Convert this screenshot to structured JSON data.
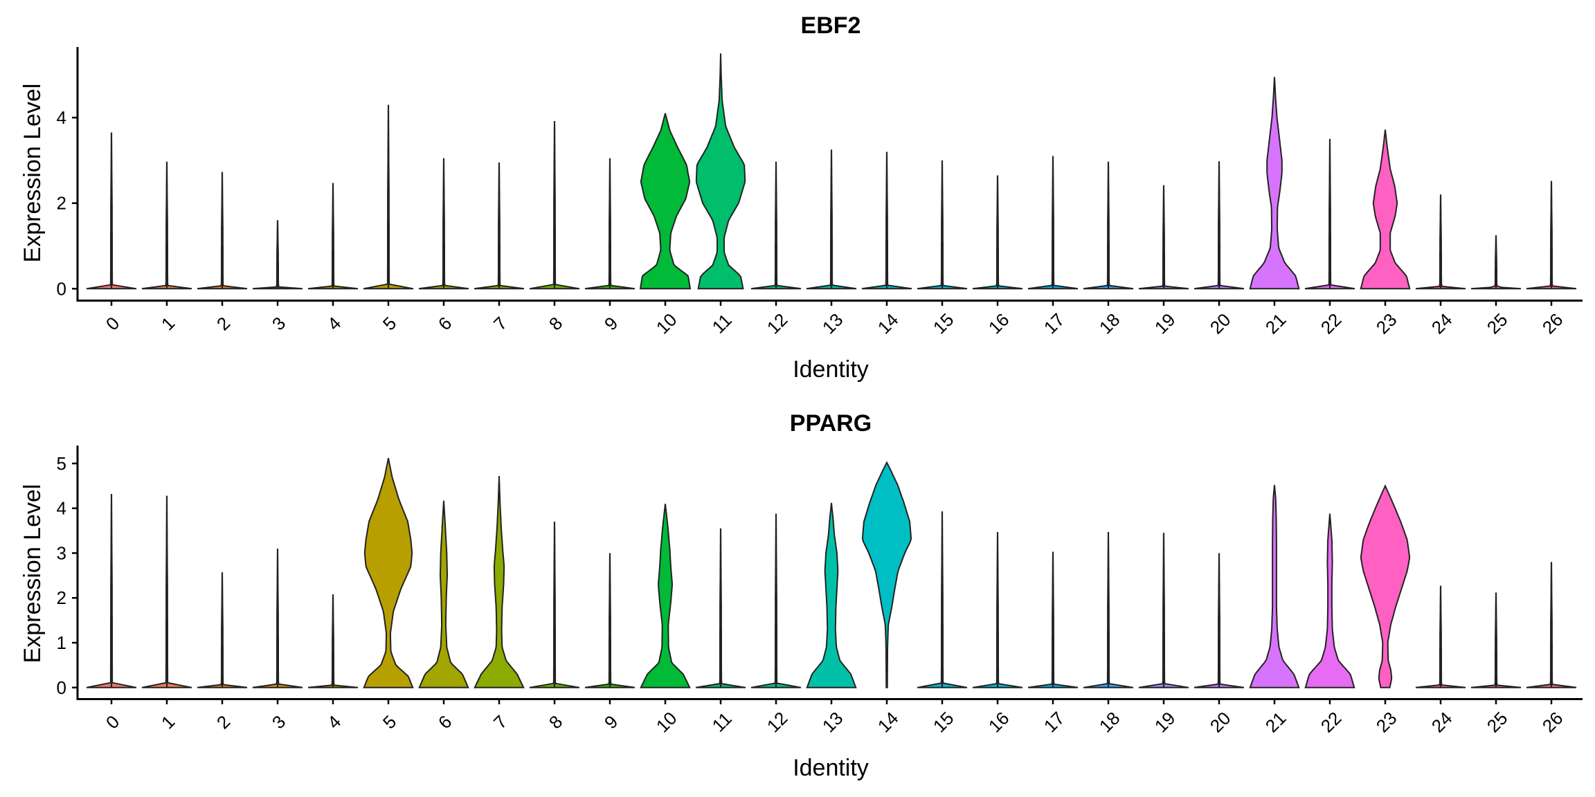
{
  "chart_data": [
    {
      "type": "violin",
      "title": "EBF2",
      "xlabel": "Identity",
      "ylabel": "Expression Level",
      "categories": [
        "0",
        "1",
        "2",
        "3",
        "4",
        "5",
        "6",
        "7",
        "8",
        "9",
        "10",
        "11",
        "12",
        "13",
        "14",
        "15",
        "16",
        "17",
        "18",
        "19",
        "20",
        "21",
        "22",
        "23",
        "24",
        "25",
        "26"
      ],
      "yticks": [
        0,
        2,
        4
      ],
      "ylim": [
        -0.27,
        5.65
      ],
      "series": [
        {
          "values": [
            {
              "max": 3.65
            },
            {
              "max": 2.97
            },
            {
              "max": 2.73
            },
            {
              "max": 1.6
            },
            {
              "max": 2.47
            },
            {
              "max": 4.3
            },
            {
              "max": 3.05
            },
            {
              "max": 2.95
            },
            {
              "max": 3.92
            },
            {
              "max": 3.05
            },
            {
              "max": 4.1,
              "profile": [
                [
                  0,
                  1.0
                ],
                [
                  0.3,
                  0.92
                ],
                [
                  0.55,
                  0.35
                ],
                [
                  0.9,
                  0.18
                ],
                [
                  1.3,
                  0.22
                ],
                [
                  1.7,
                  0.45
                ],
                [
                  2.1,
                  0.82
                ],
                [
                  2.5,
                  0.98
                ],
                [
                  2.9,
                  0.85
                ],
                [
                  3.3,
                  0.5
                ],
                [
                  3.7,
                  0.18
                ],
                [
                  4.1,
                  0
                ]
              ]
            },
            {
              "max": 5.5,
              "profile": [
                [
                  0,
                  0.9
                ],
                [
                  0.3,
                  0.8
                ],
                [
                  0.55,
                  0.32
                ],
                [
                  0.85,
                  0.14
                ],
                [
                  1.2,
                  0.14
                ],
                [
                  1.6,
                  0.32
                ],
                [
                  2.0,
                  0.72
                ],
                [
                  2.5,
                  0.98
                ],
                [
                  2.9,
                  0.95
                ],
                [
                  3.3,
                  0.55
                ],
                [
                  3.8,
                  0.2
                ],
                [
                  4.4,
                  0.06
                ],
                [
                  5.0,
                  0.02
                ],
                [
                  5.5,
                  0
                ]
              ]
            },
            {
              "max": 2.97
            },
            {
              "max": 3.25
            },
            {
              "max": 3.2
            },
            {
              "max": 3.0
            },
            {
              "max": 2.65
            },
            {
              "max": 3.1
            },
            {
              "max": 2.97
            },
            {
              "max": 2.42
            },
            {
              "max": 2.98
            },
            {
              "max": 4.95,
              "profile": [
                [
                  0,
                  0.98
                ],
                [
                  0.3,
                  0.85
                ],
                [
                  0.6,
                  0.42
                ],
                [
                  0.95,
                  0.17
                ],
                [
                  1.4,
                  0.11
                ],
                [
                  1.9,
                  0.12
                ],
                [
                  2.3,
                  0.22
                ],
                [
                  2.7,
                  0.3
                ],
                [
                  3.0,
                  0.3
                ],
                [
                  3.4,
                  0.22
                ],
                [
                  4.0,
                  0.1
                ],
                [
                  4.5,
                  0.04
                ],
                [
                  4.95,
                  0
                ]
              ]
            },
            {
              "max": 3.5
            },
            {
              "max": 3.72,
              "profile": [
                [
                  0,
                  0.98
                ],
                [
                  0.3,
                  0.85
                ],
                [
                  0.6,
                  0.4
                ],
                [
                  0.9,
                  0.2
                ],
                [
                  1.3,
                  0.2
                ],
                [
                  1.7,
                  0.4
                ],
                [
                  2.0,
                  0.48
                ],
                [
                  2.4,
                  0.38
                ],
                [
                  2.8,
                  0.2
                ],
                [
                  3.3,
                  0.08
                ],
                [
                  3.72,
                  0
                ]
              ]
            },
            {
              "max": 2.2
            },
            {
              "max": 1.25
            },
            {
              "max": 2.52
            }
          ]
        }
      ]
    },
    {
      "type": "violin",
      "title": "PPARG",
      "xlabel": "Identity",
      "ylabel": "Expression Level",
      "categories": [
        "0",
        "1",
        "2",
        "3",
        "4",
        "5",
        "6",
        "7",
        "8",
        "9",
        "10",
        "11",
        "12",
        "13",
        "14",
        "15",
        "16",
        "17",
        "18",
        "19",
        "20",
        "21",
        "22",
        "23",
        "24",
        "25",
        "26"
      ],
      "yticks": [
        0,
        1,
        2,
        3,
        4,
        5
      ],
      "ylim": [
        -0.25,
        5.4
      ],
      "series": [
        {
          "values": [
            {
              "max": 4.32
            },
            {
              "max": 4.28
            },
            {
              "max": 2.57
            },
            {
              "max": 3.1
            },
            {
              "max": 2.08
            },
            {
              "max": 5.12,
              "profile": [
                [
                  0,
                  0.98
                ],
                [
                  0.25,
                  0.8
                ],
                [
                  0.5,
                  0.3
                ],
                [
                  0.8,
                  0.1
                ],
                [
                  1.2,
                  0.08
                ],
                [
                  1.7,
                  0.2
                ],
                [
                  2.2,
                  0.5
                ],
                [
                  2.7,
                  0.9
                ],
                [
                  3.0,
                  0.95
                ],
                [
                  3.3,
                  0.9
                ],
                [
                  3.7,
                  0.78
                ],
                [
                  4.2,
                  0.42
                ],
                [
                  4.7,
                  0.15
                ],
                [
                  5.12,
                  0
                ]
              ]
            },
            {
              "max": 4.17,
              "profile": [
                [
                  0,
                  0.98
                ],
                [
                  0.3,
                  0.75
                ],
                [
                  0.55,
                  0.28
                ],
                [
                  0.9,
                  0.12
                ],
                [
                  1.4,
                  0.08
                ],
                [
                  2.0,
                  0.1
                ],
                [
                  2.5,
                  0.14
                ],
                [
                  3.0,
                  0.12
                ],
                [
                  3.5,
                  0.07
                ],
                [
                  4.17,
                  0
                ]
              ]
            },
            {
              "max": 4.72,
              "profile": [
                [
                  0,
                  0.98
                ],
                [
                  0.3,
                  0.72
                ],
                [
                  0.6,
                  0.28
                ],
                [
                  0.9,
                  0.12
                ],
                [
                  1.3,
                  0.1
                ],
                [
                  1.8,
                  0.12
                ],
                [
                  2.3,
                  0.18
                ],
                [
                  2.7,
                  0.2
                ],
                [
                  3.1,
                  0.14
                ],
                [
                  3.6,
                  0.08
                ],
                [
                  4.2,
                  0.03
                ],
                [
                  4.72,
                  0
                ]
              ]
            },
            {
              "max": 3.7
            },
            {
              "max": 3.0
            },
            {
              "max": 4.1,
              "profile": [
                [
                  0,
                  0.98
                ],
                [
                  0.3,
                  0.72
                ],
                [
                  0.55,
                  0.26
                ],
                [
                  0.9,
                  0.13
                ],
                [
                  1.4,
                  0.12
                ],
                [
                  1.9,
                  0.22
                ],
                [
                  2.3,
                  0.28
                ],
                [
                  2.7,
                  0.22
                ],
                [
                  3.1,
                  0.18
                ],
                [
                  3.6,
                  0.1
                ],
                [
                  4.1,
                  0
                ]
              ]
            },
            {
              "max": 3.55
            },
            {
              "max": 3.88
            },
            {
              "max": 4.12,
              "profile": [
                [
                  0,
                  0.98
                ],
                [
                  0.3,
                  0.78
                ],
                [
                  0.6,
                  0.34
                ],
                [
                  0.9,
                  0.2
                ],
                [
                  1.3,
                  0.16
                ],
                [
                  1.8,
                  0.18
                ],
                [
                  2.2,
                  0.22
                ],
                [
                  2.6,
                  0.26
                ],
                [
                  3.0,
                  0.22
                ],
                [
                  3.4,
                  0.12
                ],
                [
                  3.8,
                  0.06
                ],
                [
                  4.12,
                  0
                ]
              ]
            },
            {
              "max": 5.02,
              "profile": [
                [
                  0,
                  0.02
                ],
                [
                  0.9,
                  0.03
                ],
                [
                  1.4,
                  0.06
                ],
                [
                  1.8,
                  0.2
                ],
                [
                  2.2,
                  0.32
                ],
                [
                  2.6,
                  0.45
                ],
                [
                  3.0,
                  0.72
                ],
                [
                  3.3,
                  0.98
                ],
                [
                  3.7,
                  0.92
                ],
                [
                  4.1,
                  0.7
                ],
                [
                  4.5,
                  0.45
                ],
                [
                  4.8,
                  0.2
                ],
                [
                  5.02,
                  0
                ]
              ]
            },
            {
              "max": 3.93
            },
            {
              "max": 3.47
            },
            {
              "max": 3.03
            },
            {
              "max": 3.47
            },
            {
              "max": 3.45
            },
            {
              "max": 3.0
            },
            {
              "max": 4.52,
              "profile": [
                [
                  0,
                  0.98
                ],
                [
                  0.3,
                  0.78
                ],
                [
                  0.6,
                  0.34
                ],
                [
                  0.9,
                  0.18
                ],
                [
                  1.3,
                  0.11
                ],
                [
                  1.8,
                  0.08
                ],
                [
                  2.5,
                  0.08
                ],
                [
                  3.2,
                  0.08
                ],
                [
                  3.8,
                  0.07
                ],
                [
                  4.2,
                  0.05
                ],
                [
                  4.52,
                  0
                ]
              ]
            },
            {
              "max": 3.88,
              "profile": [
                [
                  0,
                  0.98
                ],
                [
                  0.3,
                  0.82
                ],
                [
                  0.6,
                  0.34
                ],
                [
                  0.9,
                  0.18
                ],
                [
                  1.3,
                  0.1
                ],
                [
                  1.8,
                  0.08
                ],
                [
                  2.3,
                  0.08
                ],
                [
                  2.8,
                  0.1
                ],
                [
                  3.3,
                  0.08
                ],
                [
                  3.88,
                  0
                ]
              ]
            },
            {
              "max": 4.5,
              "profile": [
                [
                  0,
                  0.18
                ],
                [
                  0.2,
                  0.26
                ],
                [
                  0.4,
                  0.22
                ],
                [
                  0.6,
                  0.12
                ],
                [
                  1.0,
                  0.1
                ],
                [
                  1.4,
                  0.22
                ],
                [
                  1.8,
                  0.42
                ],
                [
                  2.2,
                  0.65
                ],
                [
                  2.6,
                  0.88
                ],
                [
                  2.9,
                  0.98
                ],
                [
                  3.3,
                  0.88
                ],
                [
                  3.7,
                  0.62
                ],
                [
                  4.1,
                  0.32
                ],
                [
                  4.5,
                  0
                ]
              ]
            },
            {
              "max": 2.27
            },
            {
              "max": 2.12
            },
            {
              "max": 2.8
            }
          ]
        }
      ]
    }
  ],
  "colors": [
    "#F8766D",
    "#F27D52",
    "#E7851E",
    "#D98F00",
    "#C99800",
    "#B79F00",
    "#A3A500",
    "#8BAB00",
    "#6BB100",
    "#39B600",
    "#00BA38",
    "#00BE6C",
    "#00C08B",
    "#00C1A7",
    "#00BFC4",
    "#00BDD4",
    "#00B8E7",
    "#00B0F6",
    "#35A2FF",
    "#9590FF",
    "#C77CFF",
    "#D774FD",
    "#E76BF3",
    "#FF61C3",
    "#FF67A4",
    "#FF6C91",
    "#FF6C7E"
  ]
}
